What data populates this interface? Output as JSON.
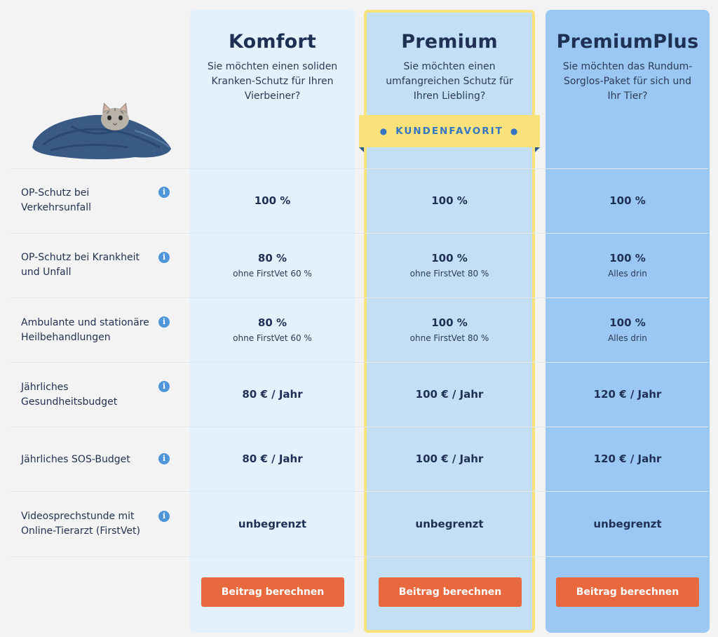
{
  "plans": [
    {
      "name": "Komfort",
      "description": "Sie möchten einen soliden Kranken-Schutz für Ihren Vierbeiner?",
      "cta_label": "Beitrag berechnen"
    },
    {
      "name": "Premium",
      "description": "Sie möchten einen umfangreichen Schutz für Ihren Liebling?",
      "cta_label": "Beitrag berechnen"
    },
    {
      "name": "PremiumPlus",
      "description": "Sie möchten das Rundum-Sorglos-Paket für sich und Ihr Tier?",
      "cta_label": "Beitrag berechnen"
    }
  ],
  "badge": {
    "label": "KUNDENFAVORIT",
    "icon": "paw-icon"
  },
  "hero_image": {
    "icon": "cat-in-blanket-image"
  },
  "info_icon": {
    "glyph": "i"
  },
  "features": [
    {
      "label": "OP-Schutz bei Verkehrsunfall",
      "values": [
        {
          "main": "100 %",
          "sub": ""
        },
        {
          "main": "100 %",
          "sub": ""
        },
        {
          "main": "100 %",
          "sub": ""
        }
      ]
    },
    {
      "label": "OP-Schutz bei Krankheit und Unfall",
      "values": [
        {
          "main": "80 %",
          "sub": "ohne FirstVet 60 %"
        },
        {
          "main": "100 %",
          "sub": "ohne FirstVet 80 %"
        },
        {
          "main": "100 %",
          "sub": "Alles drin"
        }
      ]
    },
    {
      "label": "Ambulante und stationäre Heilbehandlungen",
      "values": [
        {
          "main": "80 %",
          "sub": "ohne FirstVet 60 %"
        },
        {
          "main": "100 %",
          "sub": "ohne FirstVet 80 %"
        },
        {
          "main": "100 %",
          "sub": "Alles drin"
        }
      ]
    },
    {
      "label": "Jährliches Gesundheitsbudget",
      "values": [
        {
          "main": "80 € / Jahr",
          "sub": ""
        },
        {
          "main": "100 € / Jahr",
          "sub": ""
        },
        {
          "main": "120 € / Jahr",
          "sub": ""
        }
      ]
    },
    {
      "label": "Jährliches SOS-Budget",
      "values": [
        {
          "main": "80 € / Jahr",
          "sub": ""
        },
        {
          "main": "100 € / Jahr",
          "sub": ""
        },
        {
          "main": "120 € / Jahr",
          "sub": ""
        }
      ]
    },
    {
      "label": "Videosprechstunde mit Online-Tierarzt (FirstVet)",
      "values": [
        {
          "main": "unbegrenzt",
          "sub": ""
        },
        {
          "main": "unbegrenzt",
          "sub": ""
        },
        {
          "main": "unbegrenzt",
          "sub": ""
        }
      ]
    }
  ],
  "colors": {
    "accent_button": "#e9693f",
    "badge_bg": "#f9e27a",
    "badge_text": "#3576c2",
    "info_icon": "#4f95da"
  }
}
